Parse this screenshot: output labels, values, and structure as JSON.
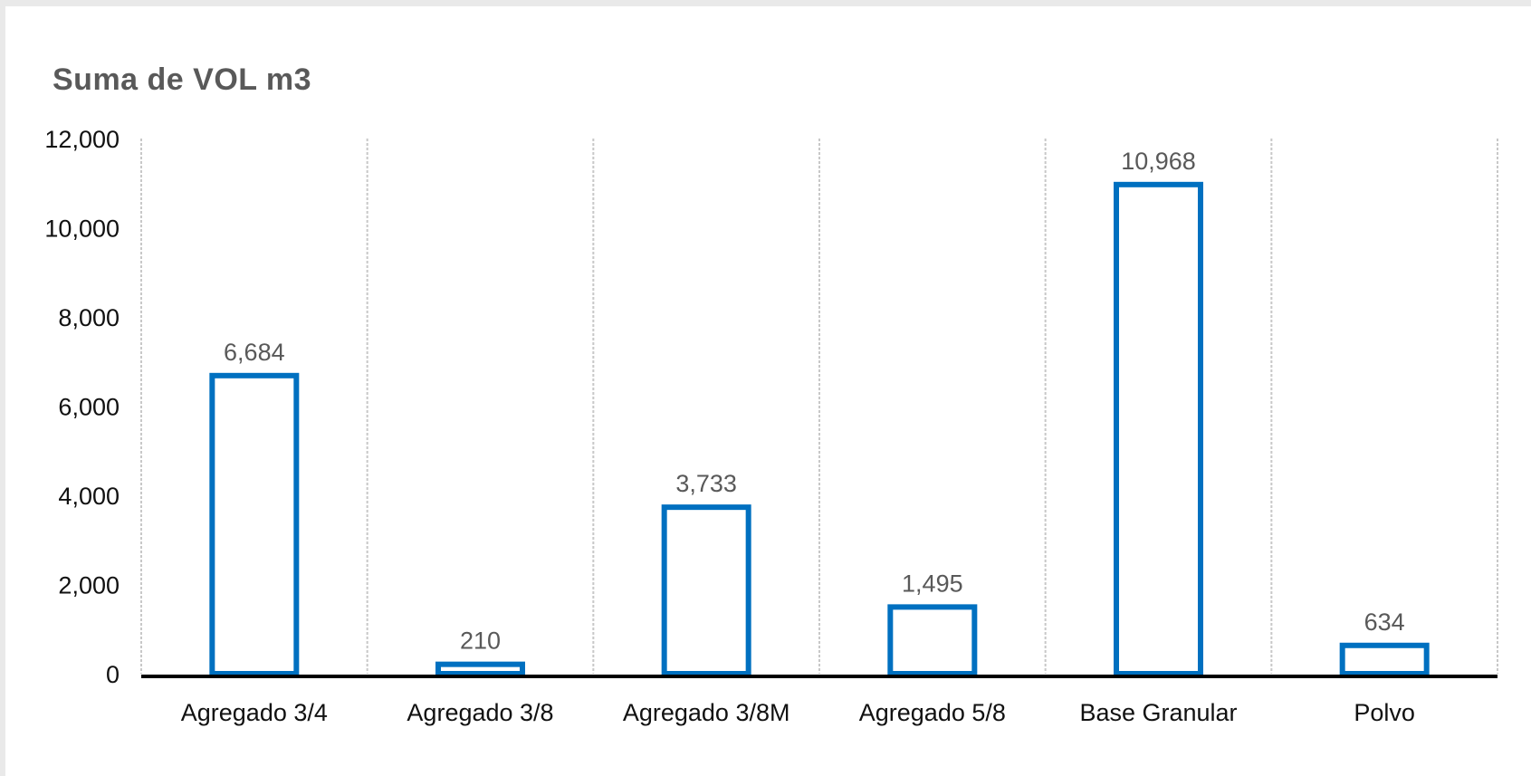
{
  "chart_data": {
    "type": "bar",
    "title": "Suma de VOL m3",
    "categories": [
      "Agregado 3/4",
      "Agregado 3/8",
      "Agregado 3/8M",
      "Agregado 5/8",
      "Base Granular",
      "Polvo"
    ],
    "values": [
      6684,
      210,
      3733,
      1495,
      10968,
      634
    ],
    "data_labels": [
      "6,684",
      "210",
      "3,733",
      "1,495",
      "10,968",
      "634"
    ],
    "yticks": [
      "0",
      "2,000",
      "4,000",
      "6,000",
      "8,000",
      "10,000",
      "12,000"
    ],
    "ytick_values": [
      0,
      2000,
      4000,
      6000,
      8000,
      10000,
      12000
    ],
    "ylim": [
      0,
      12000
    ],
    "xlabel": "",
    "ylabel": "",
    "grid": "vertical-dashed",
    "legend": "none",
    "colors": {
      "bar_stroke": "#0070c0",
      "bar_fill": "#ffffff",
      "grid": "#c8c8c8",
      "axis": "#000000"
    }
  }
}
